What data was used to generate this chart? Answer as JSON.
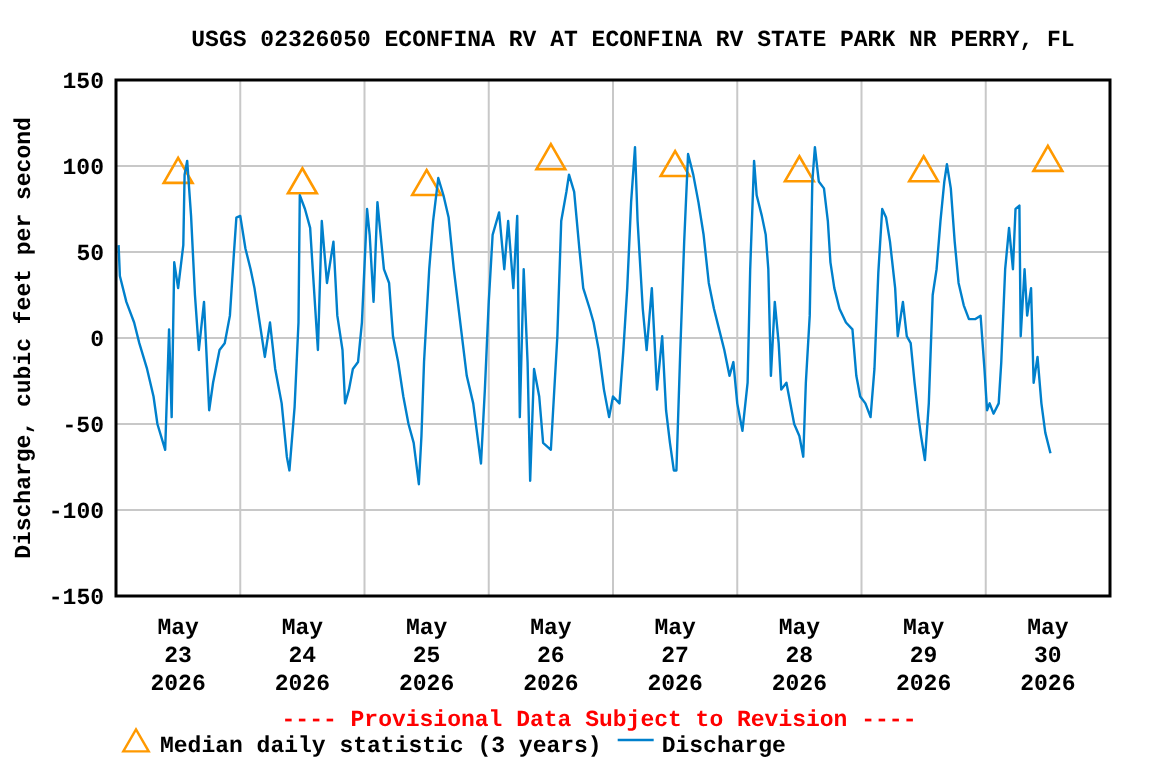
{
  "chart_data": {
    "type": "line",
    "title": "USGS 02326050 ECONFINA RV AT ECONFINA RV STATE PARK NR PERRY, FL",
    "ylabel": "Discharge, cubic feet per second",
    "annotations": [
      "---- Provisional Data Subject to Revision ----"
    ],
    "xlim": [
      "2026-05-23T00:00",
      "2026-05-31T00:00"
    ],
    "xticks": [
      {
        "value": "2026-05-23T00:00",
        "label": null
      },
      {
        "value": "2026-05-23T12:00",
        "label": "May\n23\n2026"
      },
      {
        "value": "2026-05-24T00:00",
        "label": null
      },
      {
        "value": "2026-05-24T12:00",
        "label": "May\n24\n2026"
      },
      {
        "value": "2026-05-25T00:00",
        "label": null
      },
      {
        "value": "2026-05-25T12:00",
        "label": "May\n25\n2026"
      },
      {
        "value": "2026-05-26T00:00",
        "label": null
      },
      {
        "value": "2026-05-26T12:00",
        "label": "May\n26\n2026"
      },
      {
        "value": "2026-05-27T00:00",
        "label": null
      },
      {
        "value": "2026-05-27T12:00",
        "label": "May\n27\n2026"
      },
      {
        "value": "2026-05-28T00:00",
        "label": null
      },
      {
        "value": "2026-05-28T12:00",
        "label": "May\n28\n2026"
      },
      {
        "value": "2026-05-29T00:00",
        "label": null
      },
      {
        "value": "2026-05-29T12:00",
        "label": "May\n29\n2026"
      },
      {
        "value": "2026-05-30T00:00",
        "label": null
      },
      {
        "value": "2026-05-30T12:00",
        "label": "May\n30\n2026"
      },
      {
        "value": "2026-05-31T00:00",
        "label": null
      }
    ],
    "ylim": [
      -150,
      150
    ],
    "yticks": [
      -150,
      -100,
      -50,
      0,
      50,
      100,
      150
    ],
    "grid": true,
    "legend": "bottom",
    "series": [
      {
        "name": "Median daily statistic (3 years)",
        "type": "scatter",
        "marker": "triangle",
        "color": "#ff9900",
        "x": [
          "2026-05-23T12:00",
          "2026-05-24T12:00",
          "2026-05-25T12:00",
          "2026-05-26T12:00",
          "2026-05-27T12:00",
          "2026-05-28T12:00",
          "2026-05-29T12:00",
          "2026-05-30T12:00"
        ],
        "values": [
          95,
          89,
          88,
          103,
          99,
          96,
          96,
          102
        ]
      },
      {
        "name": "Discharge",
        "marker": "none",
        "color": "#0080cc",
        "x": [
          "2026-05-23T00:30",
          "2026-05-23T00:45",
          "2026-05-23T02:00",
          "2026-05-23T03:30",
          "2026-05-23T04:30",
          "2026-05-23T06:00",
          "2026-05-23T07:15",
          "2026-05-23T08:00",
          "2026-05-23T09:30",
          "2026-05-23T10:15",
          "2026-05-23T10:45",
          "2026-05-23T11:15",
          "2026-05-23T12:00",
          "2026-05-23T13:00",
          "2026-05-23T13:15",
          "2026-05-23T13:45",
          "2026-05-23T14:30",
          "2026-05-23T15:15",
          "2026-05-23T16:00",
          "2026-05-23T17:00",
          "2026-05-23T18:00",
          "2026-05-23T18:45",
          "2026-05-23T20:00",
          "2026-05-23T21:00",
          "2026-05-23T22:00",
          "2026-05-23T22:45",
          "2026-05-23T23:15",
          "2026-05-24T00:00",
          "2026-05-24T01:00",
          "2026-05-24T02:00",
          "2026-05-24T02:45",
          "2026-05-24T03:45",
          "2026-05-24T04:45",
          "2026-05-24T05:45",
          "2026-05-24T06:45",
          "2026-05-24T08:00",
          "2026-05-24T09:00",
          "2026-05-24T09:30",
          "2026-05-24T10:30",
          "2026-05-24T11:15",
          "2026-05-24T11:30",
          "2026-05-24T12:30",
          "2026-05-24T13:30",
          "2026-05-24T14:00",
          "2026-05-24T15:00",
          "2026-05-24T15:45",
          "2026-05-24T16:45",
          "2026-05-24T18:00",
          "2026-05-24T18:45",
          "2026-05-24T19:45",
          "2026-05-24T20:15",
          "2026-05-24T21:00",
          "2026-05-24T21:45",
          "2026-05-24T22:45",
          "2026-05-24T23:30",
          "2026-05-25T00:30",
          "2026-05-25T01:00",
          "2026-05-25T01:45",
          "2026-05-25T02:30",
          "2026-05-25T03:45",
          "2026-05-25T04:45",
          "2026-05-25T05:30",
          "2026-05-25T06:30",
          "2026-05-25T07:30",
          "2026-05-25T08:30",
          "2026-05-25T09:30",
          "2026-05-25T10:30",
          "2026-05-25T11:00",
          "2026-05-25T11:30",
          "2026-05-25T12:30",
          "2026-05-25T13:15",
          "2026-05-25T14:15",
          "2026-05-25T15:15",
          "2026-05-25T16:15",
          "2026-05-25T17:15",
          "2026-05-25T18:30",
          "2026-05-25T19:45",
          "2026-05-25T21:00",
          "2026-05-25T22:30",
          "2026-05-25T23:15",
          "2026-05-26T00:00",
          "2026-05-26T00:45",
          "2026-05-26T02:00",
          "2026-05-26T03:00",
          "2026-05-26T03:45",
          "2026-05-26T04:45",
          "2026-05-26T05:30",
          "2026-05-26T06:00",
          "2026-05-26T06:45",
          "2026-05-26T07:30",
          "2026-05-26T08:00",
          "2026-05-26T08:45",
          "2026-05-26T09:45",
          "2026-05-26T10:30",
          "2026-05-26T12:00",
          "2026-05-26T13:15",
          "2026-05-26T14:00",
          "2026-05-26T15:00",
          "2026-05-26T15:30",
          "2026-05-26T16:30",
          "2026-05-26T17:30",
          "2026-05-26T18:15",
          "2026-05-26T19:30",
          "2026-05-26T20:15",
          "2026-05-26T21:15",
          "2026-05-26T22:15",
          "2026-05-26T23:15",
          "2026-05-27T00:00",
          "2026-05-27T01:15",
          "2026-05-27T02:00",
          "2026-05-27T02:45",
          "2026-05-27T03:30",
          "2026-05-27T04:15",
          "2026-05-27T04:45",
          "2026-05-27T05:45",
          "2026-05-27T06:30",
          "2026-05-27T07:30",
          "2026-05-27T08:30",
          "2026-05-27T09:30",
          "2026-05-27T10:15",
          "2026-05-27T11:00",
          "2026-05-27T11:45",
          "2026-05-27T12:15",
          "2026-05-27T13:00",
          "2026-05-27T13:45",
          "2026-05-27T14:30",
          "2026-05-27T15:30",
          "2026-05-27T16:30",
          "2026-05-27T17:30",
          "2026-05-27T18:30",
          "2026-05-27T19:30",
          "2026-05-27T20:30",
          "2026-05-27T21:30",
          "2026-05-27T22:30",
          "2026-05-27T23:15",
          "2026-05-28T00:00",
          "2026-05-28T01:00",
          "2026-05-28T02:00",
          "2026-05-28T02:30",
          "2026-05-28T03:15",
          "2026-05-28T03:45",
          "2026-05-28T04:45",
          "2026-05-28T05:30",
          "2026-05-28T06:00",
          "2026-05-28T06:30",
          "2026-05-28T07:15",
          "2026-05-28T08:00",
          "2026-05-28T08:30",
          "2026-05-28T09:30",
          "2026-05-28T11:00",
          "2026-05-28T12:00",
          "2026-05-28T12:45",
          "2026-05-28T13:15",
          "2026-05-28T14:00",
          "2026-05-28T14:30",
          "2026-05-28T15:00",
          "2026-05-28T15:45",
          "2026-05-28T16:45",
          "2026-05-28T17:30",
          "2026-05-28T18:00",
          "2026-05-28T18:45",
          "2026-05-28T19:45",
          "2026-05-28T21:00",
          "2026-05-28T22:15",
          "2026-05-28T23:00",
          "2026-05-28T23:45",
          "2026-05-29T00:45",
          "2026-05-29T01:45",
          "2026-05-29T02:30",
          "2026-05-29T03:15",
          "2026-05-29T04:00",
          "2026-05-29T04:45",
          "2026-05-29T05:30",
          "2026-05-29T06:30",
          "2026-05-29T07:00",
          "2026-05-29T08:00",
          "2026-05-29T08:45",
          "2026-05-29T09:30",
          "2026-05-29T10:15",
          "2026-05-29T11:00",
          "2026-05-29T11:30",
          "2026-05-29T12:15",
          "2026-05-29T13:00",
          "2026-05-29T13:45",
          "2026-05-29T14:30",
          "2026-05-29T15:15",
          "2026-05-29T16:00",
          "2026-05-29T16:30",
          "2026-05-29T17:15",
          "2026-05-29T18:00",
          "2026-05-29T18:45",
          "2026-05-29T19:45",
          "2026-05-29T20:45",
          "2026-05-29T22:00",
          "2026-05-29T23:00",
          "2026-05-29T23:45",
          "2026-05-30T00:15",
          "2026-05-30T00:45",
          "2026-05-30T01:30",
          "2026-05-30T02:30",
          "2026-05-30T03:00",
          "2026-05-30T03:45",
          "2026-05-30T04:30",
          "2026-05-30T05:15",
          "2026-05-30T05:45",
          "2026-05-30T06:30",
          "2026-05-30T06:45",
          "2026-05-30T07:30",
          "2026-05-30T08:00",
          "2026-05-30T08:45",
          "2026-05-30T09:15",
          "2026-05-30T10:00",
          "2026-05-30T10:45",
          "2026-05-30T11:30",
          "2026-05-30T12:30"
        ],
        "values": [
          54,
          36,
          21,
          9,
          -3,
          -18,
          -34,
          -50,
          -65,
          5,
          -46,
          44,
          29,
          54,
          95,
          103,
          71,
          25,
          -7,
          21,
          -42,
          -26,
          -7,
          -3,
          13,
          48,
          70,
          71,
          52,
          40,
          29,
          9,
          -11,
          9,
          -18,
          -38,
          -69,
          -77,
          -40,
          9,
          83,
          75,
          64,
          40,
          -7,
          68,
          32,
          56,
          13,
          -7,
          -38,
          -30,
          -18,
          -14,
          9,
          75,
          60,
          21,
          79,
          40,
          32,
          1,
          -14,
          -34,
          -50,
          -61,
          -85,
          -57,
          -14,
          40,
          68,
          93,
          83,
          70,
          40,
          9,
          -22,
          -38,
          -73,
          -30,
          21,
          60,
          73,
          40,
          68,
          29,
          71,
          -46,
          40,
          -14,
          -83,
          -18,
          -34,
          -61,
          -65,
          1,
          68,
          85,
          95,
          85,
          52,
          29,
          17,
          9,
          -7,
          -30,
          -46,
          -34,
          -38,
          -7,
          29,
          79,
          111,
          68,
          17,
          -7,
          29,
          -30,
          1,
          -42,
          -61,
          -77,
          -77,
          -7,
          56,
          107,
          95,
          79,
          60,
          32,
          17,
          5,
          -7,
          -22,
          -14,
          -38,
          -54,
          -26,
          40,
          103,
          83,
          71,
          60,
          40,
          -22,
          21,
          -3,
          -30,
          -26,
          -50,
          -57,
          -69,
          -26,
          13,
          91,
          111,
          91,
          87,
          68,
          44,
          29,
          17,
          9,
          5,
          -22,
          -34,
          -38,
          -46,
          -18,
          38,
          75,
          70,
          56,
          29,
          1,
          21,
          1,
          -3,
          -26,
          -46,
          -57,
          -71,
          -38,
          25,
          40,
          68,
          91,
          101,
          87,
          56,
          32,
          19,
          11,
          11,
          13,
          -18,
          -42,
          -38,
          -44,
          -38,
          -14,
          40,
          64,
          40,
          75,
          77,
          1,
          40,
          13,
          29,
          -26,
          -11,
          -38,
          -55,
          -67
        ]
      }
    ]
  }
}
